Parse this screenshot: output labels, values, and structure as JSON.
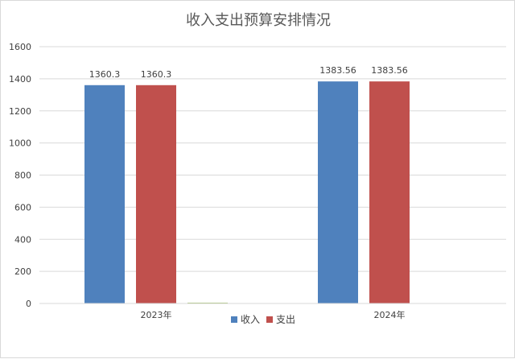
{
  "chart_data": {
    "type": "bar",
    "title": "收入支出预算安排情况",
    "categories": [
      "2023年",
      "2024年"
    ],
    "series": [
      {
        "name": "收入",
        "values": [
          1360.3,
          1383.56
        ],
        "labels": [
          "1360.3",
          "1383.56"
        ],
        "color": "#4f81bd"
      },
      {
        "name": "支出",
        "values": [
          1360.3,
          1383.56
        ],
        "labels": [
          "1360.3",
          "1383.56"
        ],
        "color": "#c0504d"
      },
      {
        "name": "",
        "values": [
          5,
          0
        ],
        "labels": [
          "",
          ""
        ],
        "color": "#9bbb59"
      }
    ],
    "ylim": [
      0,
      1600
    ],
    "yticks": [
      "0",
      "200",
      "400",
      "600",
      "800",
      "1000",
      "1200",
      "1400",
      "1600"
    ],
    "grid": true,
    "legend_position": "bottom"
  }
}
